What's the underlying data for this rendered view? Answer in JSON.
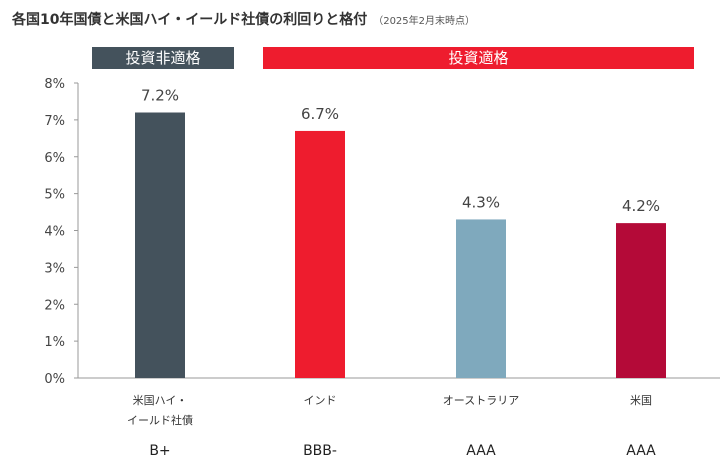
{
  "title": "各国10年国債と米国ハイ・イールド社債の利回りと格付",
  "subtitle": "（2025年2月末時点）",
  "bands": [
    {
      "label": "投資非適格",
      "color": "#44525c"
    },
    {
      "label": "投資適格",
      "color": "#ee1c2e"
    }
  ],
  "chart_data": {
    "type": "bar",
    "categories": [
      [
        "米国ハイ・",
        "イールド社債"
      ],
      [
        "インド"
      ],
      [
        "オーストラリア"
      ],
      [
        "米国"
      ]
    ],
    "ratings": [
      "B+",
      "BBB-",
      "AAA",
      "AAA"
    ],
    "values": [
      7.2,
      6.7,
      4.3,
      4.2
    ],
    "value_labels": [
      "7.2%",
      "6.7%",
      "4.3%",
      "4.2%"
    ],
    "colors": [
      "#44525c",
      "#ee1c2e",
      "#7fa9bd",
      "#b40a38"
    ],
    "ylim": [
      0,
      8
    ],
    "yticks": [
      "0%",
      "1%",
      "2%",
      "3%",
      "4%",
      "5%",
      "6%",
      "7%",
      "8%"
    ],
    "grid": false
  }
}
